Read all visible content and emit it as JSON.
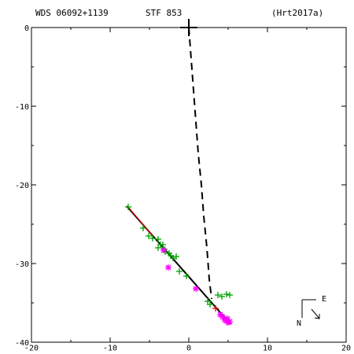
{
  "header": {
    "wds": "WDS 06092+1139",
    "disc": "STF 853",
    "ref": "(Hrt2017a)"
  },
  "compass": {
    "east_label": "E",
    "north_label": "N"
  },
  "colors": {
    "axes": "#000000",
    "green_obs": "#00a000",
    "magenta_obs": "#ff00ff",
    "fit": "#000000",
    "red": "#ff0000"
  },
  "chart_data": {
    "type": "scatter",
    "title": "",
    "xlabel": "",
    "ylabel": "",
    "xlim": [
      -20,
      20
    ],
    "ylim": [
      -40,
      0
    ],
    "x_ticks": [
      "-20",
      "-10",
      "0",
      "10",
      "20"
    ],
    "y_ticks": [
      "0",
      "-10",
      "-20",
      "-30",
      "-40"
    ],
    "primary": {
      "x": 0.0,
      "y": 0.0,
      "marker": "large-plus"
    },
    "series": [
      {
        "marker": "plus",
        "color": "#00a000",
        "points": [
          [
            -7.7,
            -22.8
          ],
          [
            -5.8,
            -25.5
          ],
          [
            -5.1,
            -26.5
          ],
          [
            -4.6,
            -26.8
          ],
          [
            -3.9,
            -26.9
          ],
          [
            -3.6,
            -27.6
          ],
          [
            -3.3,
            -27.6
          ],
          [
            -3.9,
            -28.0
          ],
          [
            -3.1,
            -28.2
          ],
          [
            -3.0,
            -28.5
          ],
          [
            -2.5,
            -28.7
          ],
          [
            -2.3,
            -29.0
          ],
          [
            -2.0,
            -29.3
          ],
          [
            -1.6,
            -29.1
          ],
          [
            -1.2,
            -31.0
          ],
          [
            -0.3,
            -31.6
          ],
          [
            2.4,
            -34.8
          ],
          [
            2.7,
            -35.2
          ],
          [
            3.7,
            -34.0
          ],
          [
            4.2,
            -34.2
          ],
          [
            4.8,
            -33.9
          ],
          [
            5.2,
            -34.0
          ],
          [
            4.4,
            -36.8
          ],
          [
            5.0,
            -37.4
          ]
        ]
      },
      {
        "marker": "asterisk",
        "color": "#ff00ff",
        "points": [
          [
            -3.2,
            -28.3
          ],
          [
            -2.6,
            -30.5
          ],
          [
            0.9,
            -33.2
          ],
          [
            4.0,
            -36.5
          ],
          [
            4.3,
            -36.8
          ],
          [
            4.6,
            -37.2
          ],
          [
            4.8,
            -37.3
          ],
          [
            5.0,
            -37.5
          ],
          [
            5.2,
            -37.4
          ],
          [
            4.9,
            -37.0
          ]
        ]
      },
      {
        "marker": "plus",
        "color": "#ff0000",
        "points": [
          [
            3.4,
            -35.7
          ]
        ]
      }
    ],
    "orbit_fit": [
      [
        -7.9,
        -22.7
      ],
      [
        5.3,
        -37.7
      ]
    ],
    "orbit_fit_red": [
      [
        -7.7,
        -22.9
      ],
      [
        -4.5,
        -26.7
      ]
    ],
    "dashed_path": [
      [
        0.0,
        0.0
      ],
      [
        0.3,
        -4.0
      ],
      [
        0.6,
        -8.0
      ],
      [
        0.9,
        -12.0
      ],
      [
        1.2,
        -16.0
      ],
      [
        1.6,
        -20.0
      ],
      [
        1.9,
        -24.0
      ],
      [
        2.3,
        -28.0
      ],
      [
        2.6,
        -32.0
      ],
      [
        2.9,
        -34.5
      ]
    ]
  }
}
